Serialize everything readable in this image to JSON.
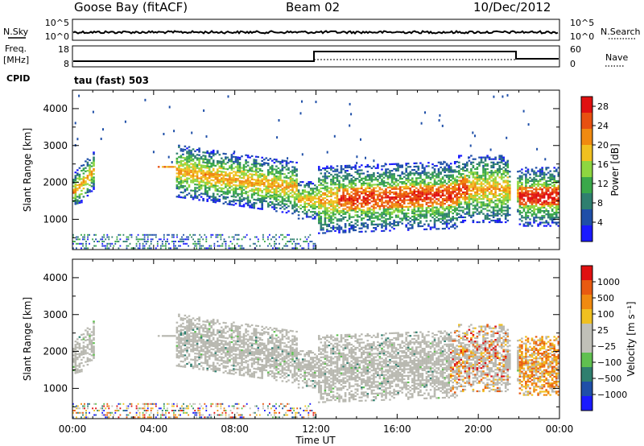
{
  "header": {
    "station": "Goose Bay (fitACF)",
    "beam": "Beam 02",
    "date": "10/Dec/2012"
  },
  "nsky_panel": {
    "left_label": "N.Sky",
    "right_label": "N.Search",
    "left_ticks": [
      "10^5",
      "10^0"
    ],
    "right_ticks": [
      "10^5",
      "10^0"
    ]
  },
  "freq_panel": {
    "left_label_1": "Freq.",
    "left_label_2": "[MHz]",
    "right_label": "Nave",
    "left_ticks": [
      "18",
      "8"
    ],
    "right_ticks": [
      "60",
      "0"
    ],
    "cpid_label": "CPID",
    "cpid_value": "tau (fast) 503"
  },
  "colors": {
    "power_scale": [
      "#1a1aff",
      "#1f4fa8",
      "#2f7f6f",
      "#3aa84a",
      "#8ed640",
      "#f0c020",
      "#f08a10",
      "#e85010",
      "#e01010"
    ],
    "velocity_scale": [
      "#e01010",
      "#e85a10",
      "#f08a10",
      "#f0c020",
      "#c0c0b8",
      "#c0c0b8",
      "#60c050",
      "#2f7f6f",
      "#1f4fa8",
      "#1a1aff"
    ],
    "ground_scatter": "#b8b8b0"
  },
  "chart_data": [
    {
      "type": "heatmap",
      "name": "power",
      "ylabel": "Slant Range [km]",
      "xlabel": "",
      "ylim": [
        180,
        4500
      ],
      "y_ticks": [
        "1000",
        "2000",
        "3000",
        "4000"
      ],
      "x_ticks": [
        "00:00",
        "04:00",
        "08:00",
        "12:00",
        "16:00",
        "20:00",
        "00:00"
      ],
      "colorbar_label": "Power [dB]",
      "colorbar_ticks": [
        "4",
        "8",
        "12",
        "16",
        "20",
        "24",
        "28"
      ],
      "colorbar_range": [
        0,
        30
      ]
    },
    {
      "type": "heatmap",
      "name": "velocity",
      "ylabel": "Slant Range [km]",
      "xlabel": "Time UT",
      "ylim": [
        180,
        4500
      ],
      "y_ticks": [
        "1000",
        "2000",
        "3000",
        "4000"
      ],
      "x_ticks": [
        "00:00",
        "04:00",
        "08:00",
        "12:00",
        "16:00",
        "20:00",
        "00:00"
      ],
      "colorbar_label": "Velocity [m s⁻¹]",
      "colorbar_ticks": [
        "1000",
        "500",
        "100",
        "25",
        "−25",
        "−100",
        "−500",
        "−1000"
      ]
    }
  ]
}
